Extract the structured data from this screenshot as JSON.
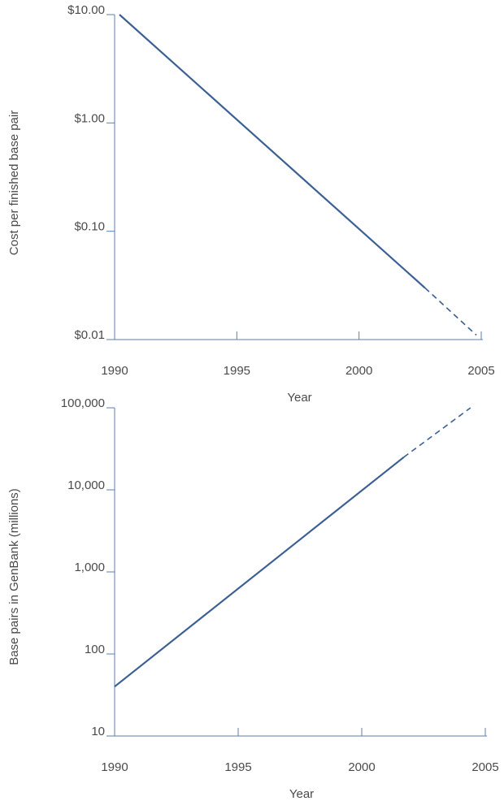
{
  "colors": {
    "axis": "#5b7fae",
    "line": "#3c5f94",
    "text": "#4a4a4a"
  },
  "chart_data": [
    {
      "type": "line",
      "xlabel": "Year",
      "ylabel": "Cost per finished base pair",
      "y_scale": "log",
      "xlim": [
        1990,
        2005
      ],
      "ylim": [
        0.01,
        10
      ],
      "x_ticks": [
        1990,
        1995,
        2000,
        2005
      ],
      "x_tick_labels": [
        "1990",
        "1995",
        "2000",
        "2005"
      ],
      "y_ticks": [
        10,
        1,
        0.1,
        0.01
      ],
      "y_tick_labels": [
        "$10.00",
        "$1.00",
        "$0.10",
        "$0.01"
      ],
      "series": [
        {
          "style": "solid",
          "x": [
            1990.2,
            2002.7
          ],
          "y": [
            10,
            0.03
          ]
        },
        {
          "style": "dashed",
          "x": [
            2002.7,
            2004.8
          ],
          "y": [
            0.03,
            0.011
          ]
        }
      ]
    },
    {
      "type": "line",
      "xlabel": "Year",
      "ylabel": "Base pairs in GenBank (millions)",
      "y_scale": "log",
      "xlim": [
        1990,
        2005
      ],
      "ylim": [
        10,
        100000
      ],
      "x_ticks": [
        1990,
        1995,
        2000,
        2005
      ],
      "x_tick_labels": [
        "1990",
        "1995",
        "2000",
        "2005"
      ],
      "y_ticks": [
        100000,
        10000,
        1000,
        100,
        10
      ],
      "y_tick_labels": [
        "100,000",
        "10,000",
        "1,000",
        "100",
        "10"
      ],
      "series": [
        {
          "style": "solid",
          "x": [
            1990,
            2001.7
          ],
          "y": [
            40,
            25000
          ]
        },
        {
          "style": "dashed",
          "x": [
            2001.7,
            2004.4
          ],
          "y": [
            25000,
            100000
          ]
        }
      ]
    }
  ]
}
